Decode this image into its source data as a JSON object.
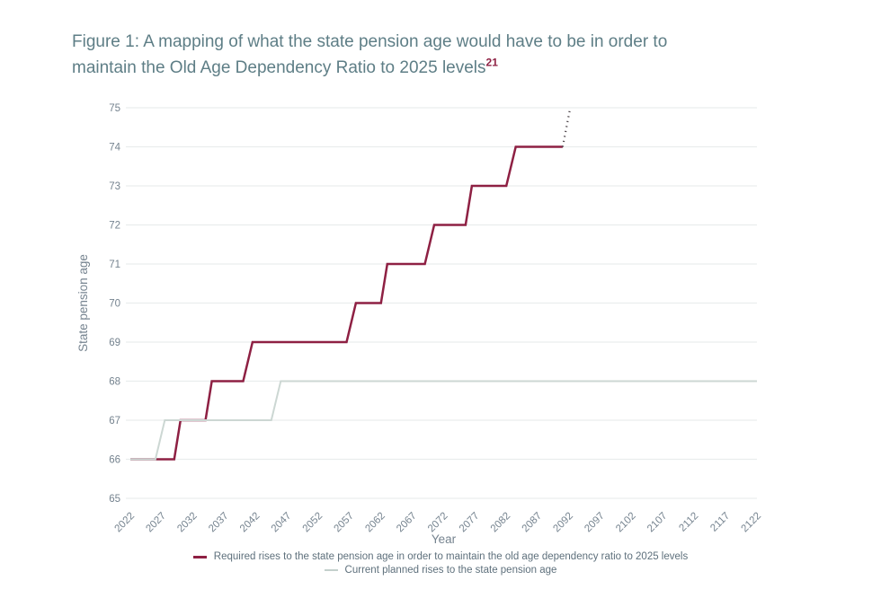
{
  "figure": {
    "title_line1": "Figure 1: A mapping of what the state pension age would have to be in order to",
    "title_line2": "maintain the Old Age Dependency Ratio to 2025 levels",
    "footnote_marker": "21"
  },
  "axes": {
    "x_title": "Year",
    "y_title": "State pension age"
  },
  "legend": {
    "items": [
      {
        "label": "Required rises to the state pension age in order to maintain the old age dependency ratio to 2025 levels",
        "color": "#8e2043"
      },
      {
        "label": "Current planned rises to the state pension age",
        "color": "#c3d0cc"
      }
    ]
  },
  "colors": {
    "title_text": "#5e7e86",
    "footnote": "#8e2043",
    "required_line": "#8e2043",
    "planned_line": "#ccd7d3",
    "projection_dots": "#4c4349",
    "gridline": "#eaeded",
    "tick_label": "#75838f",
    "axis_title": "#75838f"
  },
  "chart_data": {
    "type": "line",
    "subtype": "step",
    "title": "A mapping of what the state pension age would have to be in order to maintain the Old Age Dependency Ratio to 2025 levels",
    "xlabel": "Year",
    "ylabel": "State pension age",
    "xlim": [
      2022,
      2122
    ],
    "ylim": [
      65,
      75
    ],
    "x_ticks": [
      2022,
      2027,
      2032,
      2037,
      2042,
      2047,
      2052,
      2057,
      2062,
      2067,
      2072,
      2077,
      2082,
      2087,
      2092,
      2097,
      2102,
      2107,
      2112,
      2117,
      2122
    ],
    "y_ticks": [
      65,
      66,
      67,
      68,
      69,
      70,
      71,
      72,
      73,
      74,
      75
    ],
    "grid": "horizontal",
    "legend_position": "bottom",
    "series": [
      {
        "name": "Required rises to the state pension age in order to maintain the old age dependency ratio to 2025 levels",
        "color": "#8e2043",
        "style": "solid",
        "width": 2.5,
        "points": [
          [
            2022,
            66
          ],
          [
            2029,
            66
          ],
          [
            2030,
            67
          ],
          [
            2034,
            67
          ],
          [
            2035,
            68
          ],
          [
            2040,
            68
          ],
          [
            2041.5,
            69
          ],
          [
            2056.5,
            69
          ],
          [
            2058,
            70
          ],
          [
            2062,
            70
          ],
          [
            2063,
            71
          ],
          [
            2069,
            71
          ],
          [
            2070.5,
            72
          ],
          [
            2075.5,
            72
          ],
          [
            2076.5,
            73
          ],
          [
            2082,
            73
          ],
          [
            2083.5,
            74
          ],
          [
            2091,
            74
          ]
        ]
      },
      {
        "name": "Required rises projection (dotted continuation)",
        "color": "#4c4349",
        "style": "dotted",
        "width": 2.2,
        "points": [
          [
            2091,
            74
          ],
          [
            2092.2,
            75
          ]
        ]
      },
      {
        "name": "Current planned rises to the state pension age",
        "color": "#ccd7d3",
        "style": "solid",
        "width": 2,
        "points": [
          [
            2022,
            66
          ],
          [
            2026,
            66
          ],
          [
            2027.5,
            67
          ],
          [
            2044.5,
            67
          ],
          [
            2046,
            68
          ],
          [
            2122,
            68
          ]
        ]
      }
    ]
  }
}
